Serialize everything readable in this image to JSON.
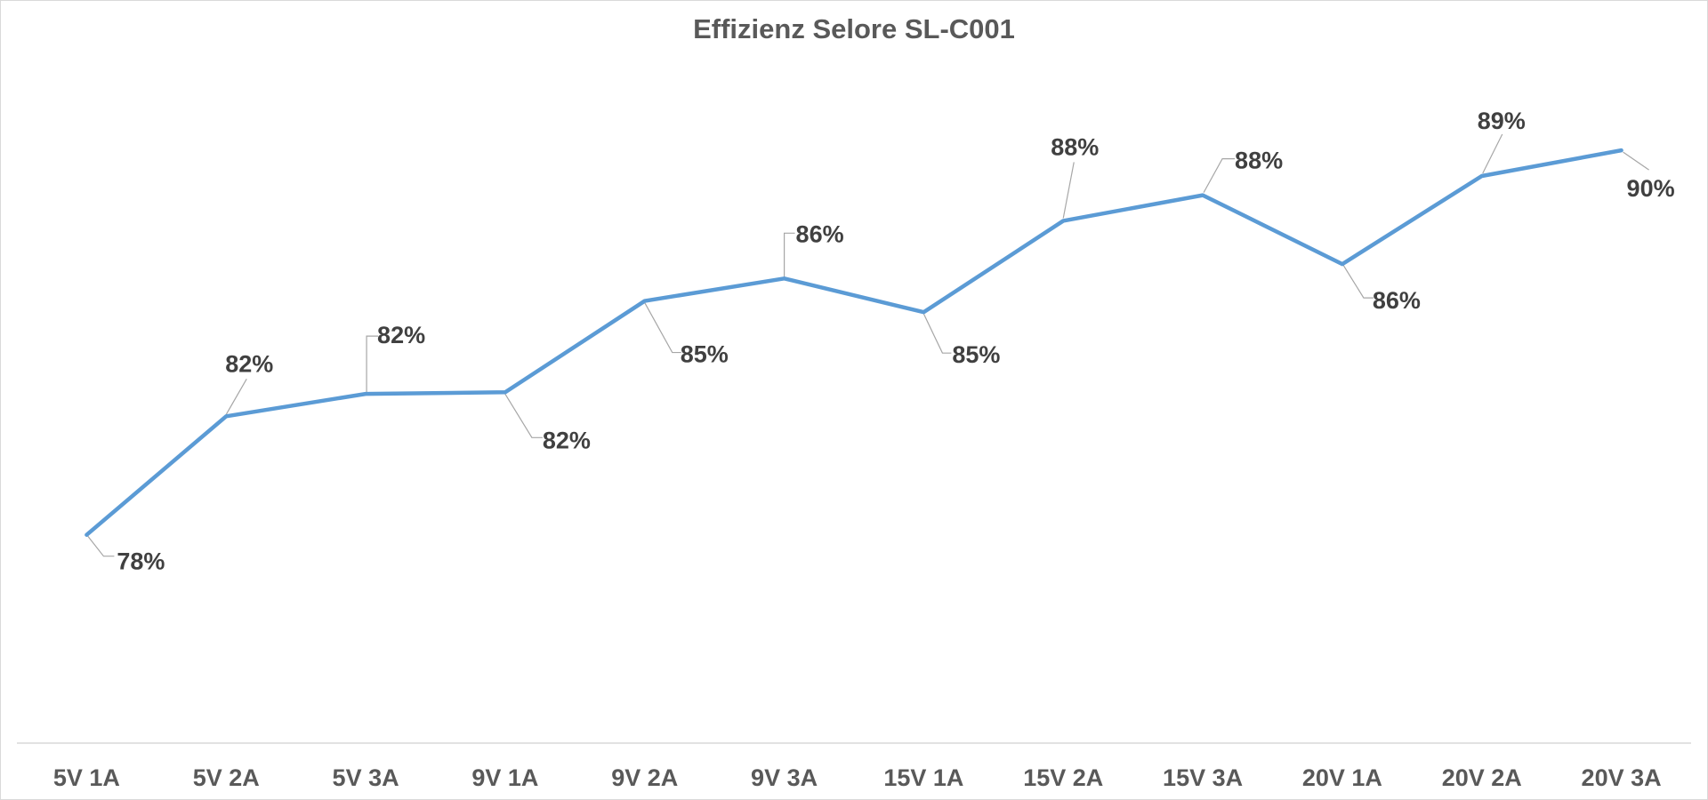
{
  "chart_data": {
    "type": "line",
    "title": "Effizienz Selore SL-C001",
    "categories": [
      "5V 1A",
      "5V 2A",
      "5V 3A",
      "9V 1A",
      "9V 2A",
      "9V 3A",
      "15V 1A",
      "15V 2A",
      "15V 3A",
      "20V 1A",
      "20V 2A",
      "20V 3A"
    ],
    "values": [
      78,
      82,
      82,
      82,
      85,
      86,
      85,
      88,
      88,
      86,
      89,
      90
    ],
    "data_labels": [
      "78%",
      "82%",
      "82%",
      "82%",
      "85%",
      "86%",
      "85%",
      "88%",
      "88%",
      "86%",
      "89%",
      "90%"
    ],
    "plotted_values_estimate": [
      78.0,
      81.7,
      82.4,
      82.45,
      85.3,
      86.0,
      84.95,
      87.8,
      88.6,
      86.45,
      89.2,
      90.0
    ],
    "ylim": [
      71.5,
      93
    ],
    "xlabel": "",
    "ylabel": "",
    "grid": false,
    "legend": false,
    "series_count": 1,
    "colors": {
      "line": "#5B9BD5",
      "data_label_text": "#404040",
      "axis_text": "#595959",
      "title_text": "#595959",
      "leader_line": "#A6A6A6",
      "axis_line": "#D9D9D9",
      "background": "#FFFFFF",
      "frame_border": "#D9D9D9"
    }
  }
}
